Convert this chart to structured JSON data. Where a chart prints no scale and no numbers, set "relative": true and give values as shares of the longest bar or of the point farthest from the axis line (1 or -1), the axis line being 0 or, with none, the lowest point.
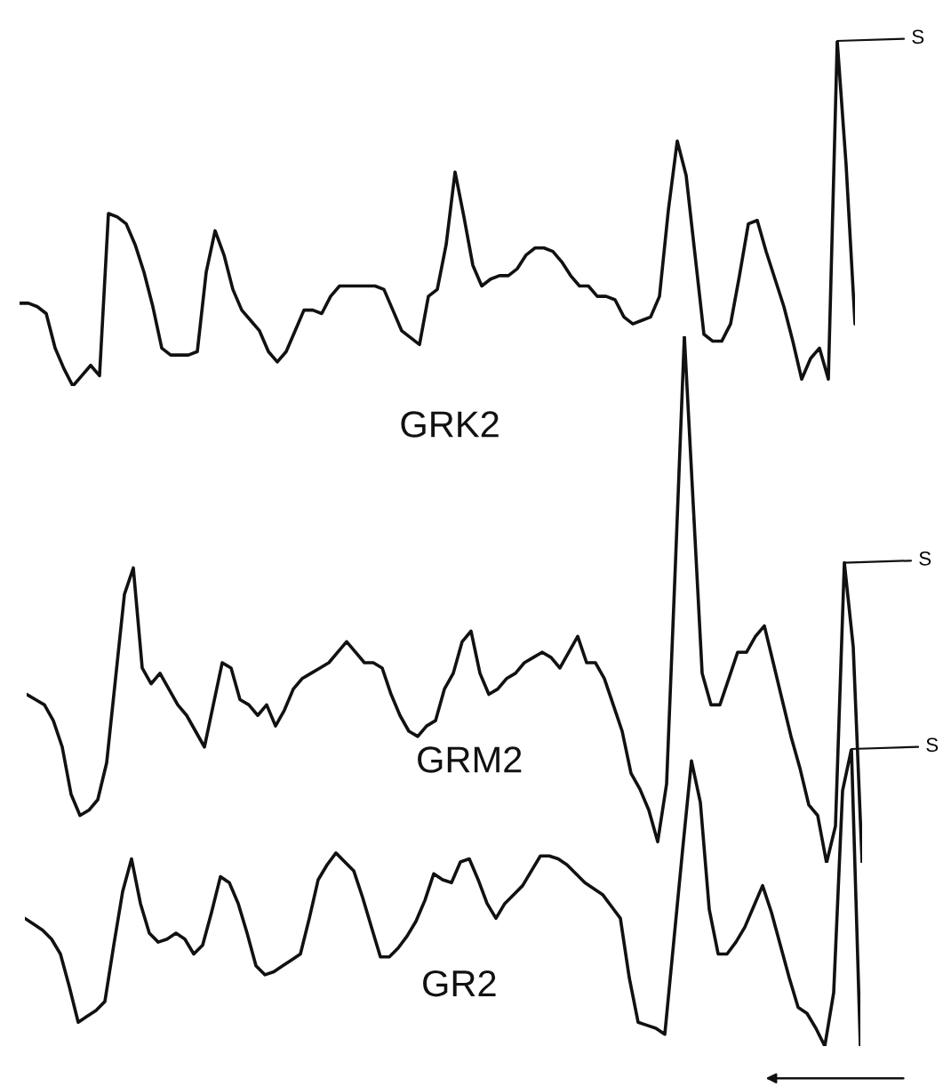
{
  "chart_data": [
    {
      "type": "line",
      "relative": true,
      "categories": [
        null,
        null,
        null,
        null,
        null,
        null,
        null,
        null,
        null,
        null,
        null,
        null,
        null,
        null,
        null,
        null,
        null,
        null,
        null,
        null,
        null,
        null,
        null,
        null,
        null,
        null,
        null,
        null,
        null,
        null,
        null,
        null,
        null,
        null,
        null,
        null,
        null,
        null,
        null,
        null,
        null,
        null,
        null,
        null,
        null,
        null,
        null,
        null,
        null,
        null,
        null,
        null,
        null,
        null,
        null,
        null,
        null,
        null,
        null,
        null,
        null,
        null,
        null,
        null,
        null,
        null,
        null,
        null,
        null,
        null,
        null,
        null,
        null,
        null,
        null,
        null,
        null,
        null,
        null,
        null,
        null,
        null,
        null,
        null,
        null,
        null,
        null,
        null,
        null,
        null,
        null,
        null,
        null,
        null,
        null
      ],
      "series": [
        {
          "name": "GRK2",
          "color": "#111111",
          "values": [
            0.24,
            0.24,
            0.23,
            0.21,
            0.11,
            0.05,
            0,
            0.03,
            0.06,
            0.03,
            0.5,
            0.49,
            0.47,
            0.41,
            0.33,
            0.23,
            0.11,
            0.09,
            0.09,
            0.09,
            0.1,
            0.33,
            0.45,
            0.38,
            0.28,
            0.22,
            0.19,
            0.16,
            0.1,
            0.07,
            0.1,
            0.16,
            0.22,
            0.22,
            0.21,
            0.26,
            0.29,
            0.29,
            0.29,
            0.29,
            0.29,
            0.28,
            0.22,
            0.16,
            0.14,
            0.12,
            0.26,
            0.28,
            0.41,
            0.62,
            0.49,
            0.35,
            0.29,
            0.31,
            0.32,
            0.32,
            0.34,
            0.38,
            0.4,
            0.4,
            0.39,
            0.36,
            0.32,
            0.29,
            0.29,
            0.26,
            0.26,
            0.25,
            0.2,
            0.18,
            0.19,
            0.2,
            0.26,
            0.51,
            0.71,
            0.61,
            0.38,
            0.15,
            0.13,
            0.13,
            0.18,
            0.32,
            0.47,
            0.48,
            0.39,
            0.31,
            0.23,
            0.13,
            0.02,
            0.08,
            0.11,
            0.02,
            1,
            0.64,
            0.18
          ]
        }
      ],
      "annotations": [
        "S"
      ]
    },
    {
      "type": "line",
      "relative": true,
      "categories": [
        null,
        null,
        null,
        null,
        null,
        null,
        null,
        null,
        null,
        null,
        null,
        null,
        null,
        null,
        null,
        null,
        null,
        null,
        null,
        null,
        null,
        null,
        null,
        null,
        null,
        null,
        null,
        null,
        null,
        null,
        null,
        null,
        null,
        null,
        null,
        null,
        null,
        null,
        null,
        null,
        null,
        null,
        null,
        null,
        null,
        null,
        null,
        null,
        null,
        null,
        null,
        null,
        null,
        null,
        null,
        null,
        null,
        null,
        null,
        null,
        null,
        null,
        null,
        null,
        null,
        null,
        null,
        null,
        null,
        null,
        null,
        null,
        null,
        null,
        null,
        null,
        null,
        null,
        null,
        null,
        null,
        null,
        null,
        null,
        null,
        null,
        null,
        null,
        null,
        null,
        null,
        null,
        null,
        null,
        null
      ],
      "series": [
        {
          "name": "GRM2",
          "color": "#111111",
          "values": [
            0.32,
            0.31,
            0.3,
            0.27,
            0.22,
            0.13,
            0.09,
            0.1,
            0.12,
            0.19,
            0.35,
            0.51,
            0.56,
            0.37,
            0.34,
            0.36,
            0.33,
            0.3,
            0.28,
            0.25,
            0.22,
            0.3,
            0.38,
            0.37,
            0.31,
            0.3,
            0.28,
            0.3,
            0.26,
            0.29,
            0.33,
            0.35,
            0.36,
            0.37,
            0.38,
            0.4,
            0.42,
            0.4,
            0.38,
            0.38,
            0.37,
            0.32,
            0.28,
            0.25,
            0.24,
            0.26,
            0.27,
            0.33,
            0.36,
            0.42,
            0.44,
            0.36,
            0.32,
            0.33,
            0.35,
            0.36,
            0.38,
            0.39,
            0.4,
            0.39,
            0.37,
            0.4,
            0.43,
            0.38,
            0.38,
            0.35,
            0.3,
            0.25,
            0.17,
            0.14,
            0.1,
            0.04,
            0.15,
            0.57,
            1,
            0.68,
            0.36,
            0.3,
            0.3,
            0.35,
            0.4,
            0.4,
            0.43,
            0.45,
            0.38,
            0.31,
            0.24,
            0.18,
            0.11,
            0.09,
            0,
            0.07,
            0.57,
            0.41,
            0
          ]
        }
      ],
      "annotations": [
        "S"
      ]
    },
    {
      "type": "line",
      "relative": true,
      "categories": [
        null,
        null,
        null,
        null,
        null,
        null,
        null,
        null,
        null,
        null,
        null,
        null,
        null,
        null,
        null,
        null,
        null,
        null,
        null,
        null,
        null,
        null,
        null,
        null,
        null,
        null,
        null,
        null,
        null,
        null,
        null,
        null,
        null,
        null,
        null,
        null,
        null,
        null,
        null,
        null,
        null,
        null,
        null,
        null,
        null,
        null,
        null,
        null,
        null,
        null,
        null,
        null,
        null,
        null,
        null,
        null,
        null,
        null,
        null,
        null,
        null,
        null,
        null,
        null,
        null,
        null,
        null,
        null,
        null,
        null,
        null,
        null,
        null,
        null,
        null,
        null,
        null,
        null,
        null,
        null,
        null,
        null,
        null,
        null,
        null,
        null,
        null,
        null,
        null,
        null,
        null,
        null,
        null,
        null,
        null
      ],
      "series": [
        {
          "name": "GR2",
          "color": "#111111",
          "values": [
            0.43,
            0.41,
            0.39,
            0.36,
            0.31,
            0.2,
            0.08,
            0.1,
            0.12,
            0.15,
            0.34,
            0.52,
            0.63,
            0.48,
            0.38,
            0.35,
            0.36,
            0.38,
            0.36,
            0.31,
            0.34,
            0.45,
            0.57,
            0.55,
            0.48,
            0.38,
            0.27,
            0.24,
            0.25,
            0.27,
            0.29,
            0.31,
            0.43,
            0.56,
            0.61,
            0.65,
            0.62,
            0.59,
            0.5,
            0.4,
            0.3,
            0.3,
            0.33,
            0.37,
            0.42,
            0.49,
            0.58,
            0.56,
            0.55,
            0.62,
            0.63,
            0.56,
            0.48,
            0.43,
            0.48,
            0.51,
            0.54,
            0.59,
            0.64,
            0.64,
            0.63,
            0.61,
            0.58,
            0.55,
            0.53,
            0.51,
            0.47,
            0.43,
            0.23,
            0.08,
            0.07,
            0.06,
            0.04,
            0.35,
            0.66,
            0.96,
            0.82,
            0.46,
            0.31,
            0.31,
            0.35,
            0.4,
            0.47,
            0.54,
            0.45,
            0.34,
            0.23,
            0.13,
            0.11,
            0.06,
            0,
            0.18,
            0.86,
            1,
            0
          ]
        }
      ],
      "annotations": [
        "S"
      ]
    }
  ]
}
